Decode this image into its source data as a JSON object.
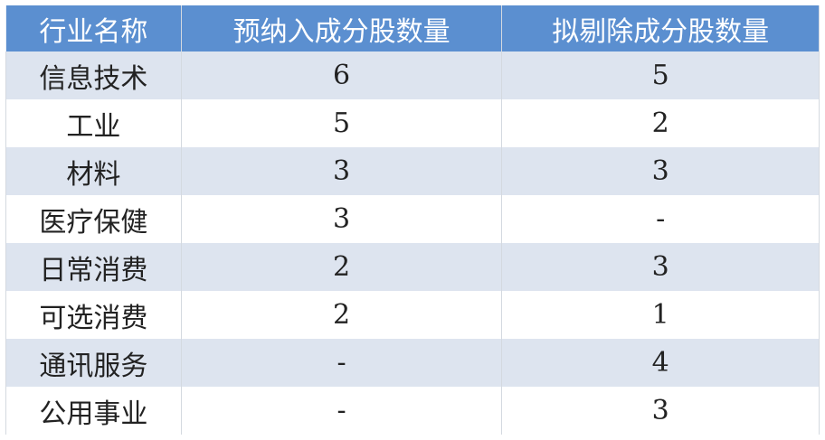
{
  "headers": [
    "行业名称",
    "预纳入成分股数量",
    "拟剔除成分股数量"
  ],
  "rows": [
    {
      "industry": "信息技术",
      "add": "6",
      "remove": "5"
    },
    {
      "industry": "工业",
      "add": "5",
      "remove": "2"
    },
    {
      "industry": "材料",
      "add": "3",
      "remove": "3"
    },
    {
      "industry": "医疗保健",
      "add": "3",
      "remove": "-"
    },
    {
      "industry": "日常消费",
      "add": "2",
      "remove": "3"
    },
    {
      "industry": "可选消费",
      "add": "2",
      "remove": "1"
    },
    {
      "industry": "通讯服务",
      "add": "-",
      "remove": "4"
    },
    {
      "industry": "公用事业",
      "add": "-",
      "remove": "3"
    }
  ],
  "colors": {
    "header": "#5b8fd0",
    "stripe": "#dde4ef"
  }
}
